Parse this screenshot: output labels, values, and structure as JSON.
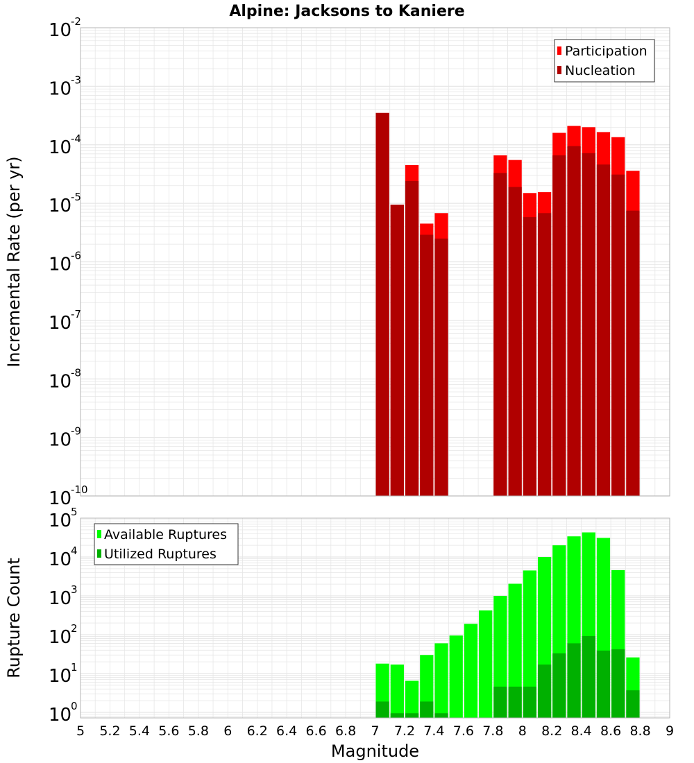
{
  "title": "Alpine: Jacksons to Kaniere",
  "colors": {
    "participation": "#ff0000",
    "nucleation": "#b00000",
    "available": "#00ff00",
    "utilized": "#00b000",
    "grid": "#e6e6e6",
    "frame": "#b4b4b4"
  },
  "chart_data": [
    {
      "type": "bar",
      "ylabel": "Incremental Rate (per yr)",
      "ylim": [
        1e-10,
        0.01
      ],
      "y_scale": "log",
      "y_tick_base": "10",
      "y_tick_exponents": [
        "-10",
        "-9",
        "-8",
        "-7",
        "-6",
        "-5",
        "-4",
        "-3",
        "-2"
      ],
      "legend": {
        "position": "top-right",
        "entries": [
          "Participation",
          "Nucleation"
        ]
      },
      "grid": true,
      "x": [
        7.0,
        7.1,
        7.2,
        7.3,
        7.4,
        7.8,
        7.9,
        8.0,
        8.1,
        8.2,
        8.3,
        8.4,
        8.5,
        8.6,
        8.7
      ],
      "series": [
        {
          "name": "Participation",
          "values": [
            0.00035,
            9.5e-06,
            4.5e-05,
            4.5e-06,
            6.8e-06,
            6.6e-05,
            5.5e-05,
            1.5e-05,
            1.55e-05,
            0.00016,
            0.00021,
            0.0002,
            0.000165,
            0.000135,
            3.6e-05
          ]
        },
        {
          "name": "Nucleation",
          "values": [
            0.00035,
            9.5e-06,
            2.4e-05,
            2.9e-06,
            2.5e-06,
            3.3e-05,
            1.9e-05,
            5.8e-06,
            6.8e-06,
            6.6e-05,
            9.5e-05,
            7.2e-05,
            4.6e-05,
            3.1e-05,
            7.5e-06
          ]
        }
      ]
    },
    {
      "type": "bar",
      "xlabel": "Magnitude",
      "ylabel": "Rupture Count",
      "xlim": [
        5,
        9
      ],
      "x_ticks": [
        "5",
        "5.2",
        "5.4",
        "5.6",
        "5.8",
        "6",
        "6.2",
        "6.4",
        "6.6",
        "6.8",
        "7",
        "7.2",
        "7.4",
        "7.6",
        "7.8",
        "8",
        "8.2",
        "8.4",
        "8.6",
        "8.8",
        "9"
      ],
      "ylim": [
        0.72,
        100000
      ],
      "y_scale": "log",
      "y_tick_base": "10",
      "y_tick_exponents": [
        "0",
        "1",
        "2",
        "3",
        "4",
        "5"
      ],
      "legend": {
        "position": "top-left",
        "entries": [
          "Available Ruptures",
          "Utilized Ruptures"
        ]
      },
      "grid": true,
      "x": [
        7.0,
        7.1,
        7.2,
        7.3,
        7.4,
        7.5,
        7.6,
        7.7,
        7.8,
        7.9,
        8.0,
        8.1,
        8.2,
        8.3,
        8.4,
        8.5,
        8.6,
        8.7
      ],
      "series": [
        {
          "name": "Available Ruptures",
          "values": [
            18,
            17,
            6.5,
            30,
            60,
            95,
            190,
            420,
            1000,
            2050,
            4500,
            10000,
            20000,
            34000,
            43000,
            31000,
            4600,
            26
          ]
        },
        {
          "name": "Utilized Ruptures",
          "values": [
            1.9,
            0.95,
            0.95,
            1.9,
            0.95,
            null,
            null,
            null,
            4.6,
            4.6,
            4.6,
            17,
            33,
            60,
            92,
            39,
            42,
            3.7
          ]
        }
      ]
    }
  ]
}
